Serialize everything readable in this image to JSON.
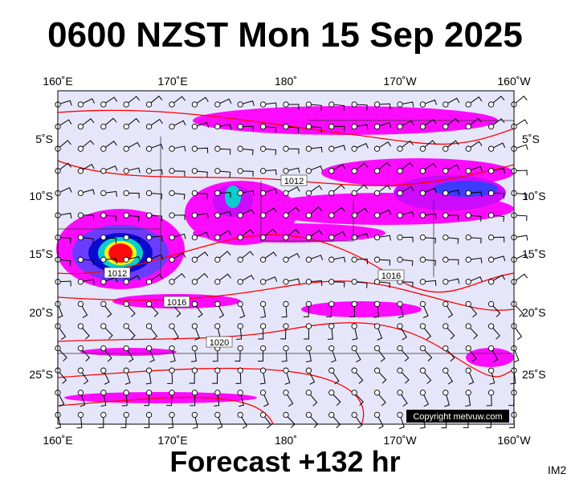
{
  "header": {
    "title": "0600 NZST Mon 15 Sep 2025"
  },
  "map": {
    "lon_labels": [
      "160˚E",
      "170˚E",
      "180˚",
      "170˚W",
      "160˚W"
    ],
    "lat_labels": [
      "5˚S",
      "10˚S",
      "15˚S",
      "20˚S",
      "25˚S"
    ],
    "isobar_labels": [
      "1012",
      "1012",
      "1016",
      "1016",
      "1020"
    ],
    "copyright": "Copyright metvuw.com"
  },
  "footer": {
    "forecast": "Forecast +132 hr",
    "image_id": "IM2"
  }
}
